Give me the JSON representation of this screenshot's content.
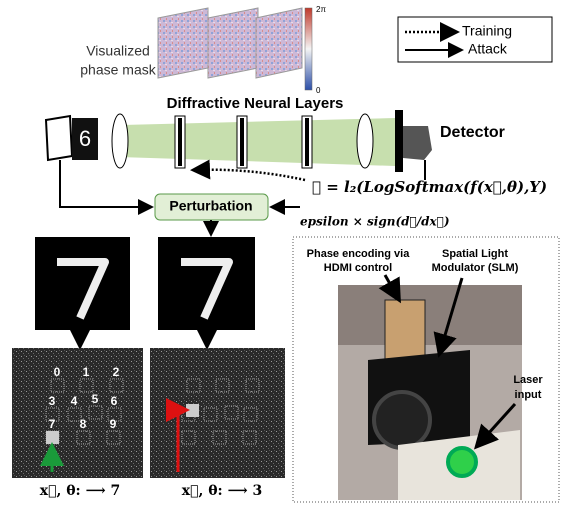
{
  "phase_mask": {
    "label_lines": [
      "Visualized",
      "phase mask"
    ],
    "scale_max": "2π",
    "scale_min": "0"
  },
  "legend": {
    "training": "Training",
    "attack": "Attack"
  },
  "setup": {
    "title": "Diffractive Neural Layers",
    "detector": "Detector",
    "input_digit": "6",
    "loss": "ℒ = l₂(LogSoftmax(f(x⃗,θ),Y)",
    "perturbation": "Perturbation",
    "gradient": "epsilon × sign(dℒ/dx⃗)"
  },
  "detector_plane": {
    "digits": [
      "0",
      "1",
      "2",
      "3",
      "4",
      "5",
      "6",
      "7",
      "8",
      "9"
    ]
  },
  "captions": [
    "x⃗, θ: ⟶ 7",
    "x⃗, θ: ⟶ 3"
  ],
  "photo": {
    "slm_encoding_lines": [
      "Phase encoding via",
      "HDMI control"
    ],
    "slm_lines": [
      "Spatial Light",
      "Modulator (SLM)"
    ],
    "laser_lines": [
      "Laser",
      "input"
    ]
  }
}
